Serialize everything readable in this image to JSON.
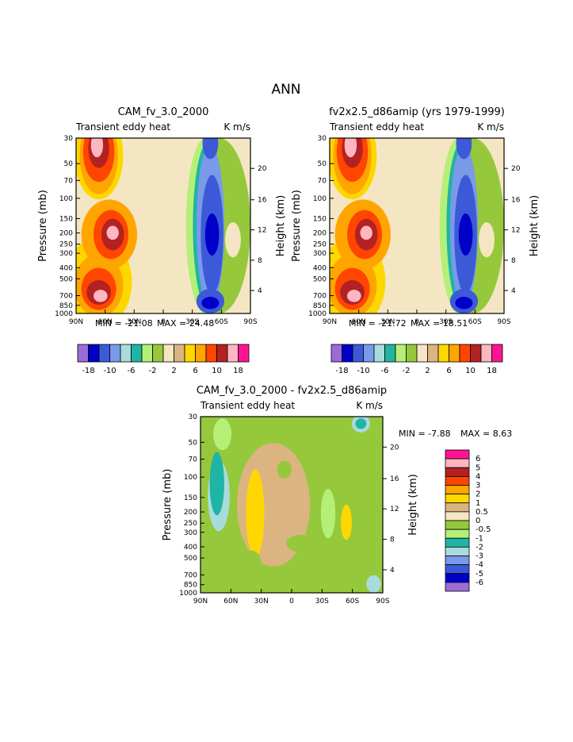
{
  "figure_title": "ANN",
  "chart_data": [
    {
      "type": "contour",
      "title": "CAM_fv_3.0_2000",
      "subtitle_left": "Transient eddy heat",
      "subtitle_right": "K m/s",
      "ylabel": "Pressure (mb)",
      "ylabel_right": "Height (km)",
      "x_ticks": [
        "90N",
        "60N",
        "30N",
        "0",
        "30S",
        "60S",
        "90S"
      ],
      "y_ticks": [
        "30",
        "50",
        "70",
        "100",
        "150",
        "200",
        "250",
        "300",
        "400",
        "500",
        "700",
        "850",
        "1000"
      ],
      "height_ticks": [
        "20",
        "16",
        "12",
        "8",
        "4"
      ],
      "min_label": "MIN = -21.08",
      "max_label": "MAX = 24.48",
      "min": -21.08,
      "max": 24.48,
      "colorbar_labels": [
        "-18",
        "-10",
        "-6",
        "-2",
        "2",
        "6",
        "10",
        "18"
      ]
    },
    {
      "type": "contour",
      "title": "fv2x2.5_d86amip (yrs 1979-1999)",
      "subtitle_left": "Transient eddy heat",
      "subtitle_right": "K m/s",
      "ylabel": "Pressure (mb)",
      "ylabel_right": "Height (km)",
      "x_ticks": [
        "90N",
        "60N",
        "30N",
        "0",
        "30S",
        "60S",
        "90S"
      ],
      "y_ticks": [
        "30",
        "50",
        "70",
        "100",
        "150",
        "200",
        "250",
        "300",
        "400",
        "500",
        "700",
        "850",
        "1000"
      ],
      "height_ticks": [
        "20",
        "16",
        "12",
        "8",
        "4"
      ],
      "min_label": "MIN = -21.72",
      "max_label": "MAX = 18.51",
      "min": -21.72,
      "max": 18.51,
      "colorbar_labels": [
        "-18",
        "-10",
        "-6",
        "-2",
        "2",
        "6",
        "10",
        "18"
      ]
    },
    {
      "type": "contour",
      "title": "CAM_fv_3.0_2000 - fv2x2.5_d86amip",
      "subtitle_left": "Transient eddy heat",
      "subtitle_right": "K m/s",
      "ylabel": "Pressure (mb)",
      "ylabel_right": "Height (km)",
      "x_ticks": [
        "90N",
        "60N",
        "30N",
        "0",
        "30S",
        "60S",
        "90S"
      ],
      "y_ticks": [
        "30",
        "50",
        "70",
        "100",
        "150",
        "200",
        "250",
        "300",
        "400",
        "500",
        "700",
        "850",
        "1000"
      ],
      "height_ticks": [
        "20",
        "16",
        "12",
        "8",
        "4"
      ],
      "min_label": "MIN = -7.88",
      "max_label": "MAX = 8.63",
      "min": -7.88,
      "max": 8.63,
      "colorbar_labels": [
        "6",
        "5",
        "4",
        "3",
        "2",
        "1",
        "0.5",
        "0",
        "-0.5",
        "-1",
        "-2",
        "-3",
        "-4",
        "-5",
        "-6"
      ]
    }
  ],
  "colors": {
    "abs_scale": [
      "#9b6cd6",
      "#0000c8",
      "#3c5ad8",
      "#7a9ae8",
      "#a8dcdc",
      "#20b4a4",
      "#b4f078",
      "#96c83c",
      "#f5e6c3",
      "#dcb482",
      "#ffd700",
      "#ffa500",
      "#ff4500",
      "#b22222",
      "#ffb6c1",
      "#ff1493"
    ],
    "diff_scale": [
      "#ff1493",
      "#ffb6c1",
      "#b22222",
      "#ff4500",
      "#ffa500",
      "#ffd700",
      "#dcb482",
      "#f5e6c3",
      "#96c83c",
      "#b4f078",
      "#20b4a4",
      "#a8dcdc",
      "#7a9ae8",
      "#3c5ad8",
      "#0000c8",
      "#9b6cd6"
    ]
  }
}
